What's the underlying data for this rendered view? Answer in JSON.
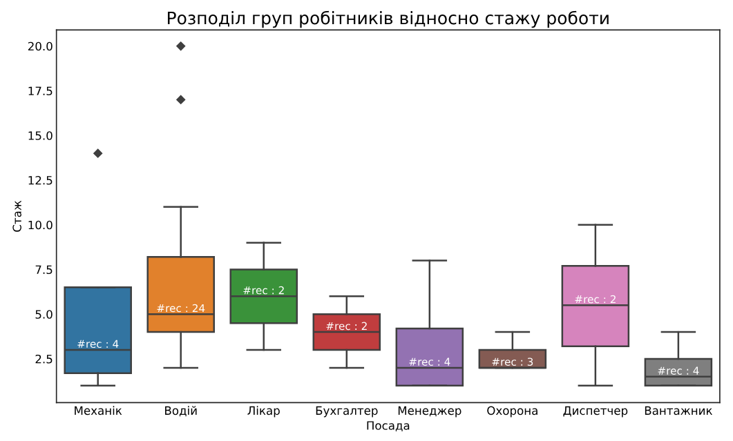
{
  "chart_data": {
    "type": "box",
    "title": "Розподіл груп робітників відносно стажу роботи",
    "xlabel": "Посада",
    "ylabel": "Стаж",
    "categories": [
      "Механік",
      "Водій",
      "Лікар",
      "Бухгалтер",
      "Менеджер",
      "Охорона",
      "Диспетчер",
      "Вантажник"
    ],
    "colors": [
      "#3274a1",
      "#e1812c",
      "#3a923a",
      "#c03d3e",
      "#9372b2",
      "#845b53",
      "#d684bd",
      "#7f7f7f"
    ],
    "boxes": [
      {
        "low": 1,
        "q1": 1.7,
        "median": 3,
        "q3": 6.5,
        "high": 6.5,
        "outliers": [
          14
        ]
      },
      {
        "low": 2,
        "q1": 4,
        "median": 5,
        "q3": 8.2,
        "high": 11,
        "outliers": [
          17,
          20
        ]
      },
      {
        "low": 3,
        "q1": 4.5,
        "median": 6,
        "q3": 7.5,
        "high": 9
      },
      {
        "low": 2,
        "q1": 3,
        "median": 4,
        "q3": 5,
        "high": 6
      },
      {
        "low": 1,
        "q1": 1,
        "median": 2,
        "q3": 4.2,
        "high": 8
      },
      {
        "low": 2,
        "q1": 2,
        "median": 2,
        "q3": 3,
        "high": 4
      },
      {
        "low": 1,
        "q1": 3.2,
        "median": 5.5,
        "q3": 7.7,
        "high": 10
      },
      {
        "low": 1,
        "q1": 1,
        "median": 1.5,
        "q3": 2.5,
        "high": 4
      }
    ],
    "annotations": [
      {
        "text": "#rec : 4",
        "x": "Механік",
        "y": 3
      },
      {
        "text": "#rec : 24",
        "x": "Водій",
        "y": 5
      },
      {
        "text": "#rec : 2",
        "x": "Лікар",
        "y": 6
      },
      {
        "text": "#rec : 2",
        "x": "Бухгалтер",
        "y": 4
      },
      {
        "text": "#rec : 4",
        "x": "Менеджер",
        "y": 2
      },
      {
        "text": "#rec : 3",
        "x": "Охорона",
        "y": 2
      },
      {
        "text": "#rec : 2",
        "x": "Диспетчер",
        "y": 5.5
      },
      {
        "text": "#rec : 4",
        "x": "Вантажник",
        "y": 1.5
      }
    ],
    "ylim": [
      0.05,
      20.9
    ],
    "yticks": [
      {
        "value": 2.5,
        "label": "2.5"
      },
      {
        "value": 5,
        "label": "5.0"
      },
      {
        "value": 7.5,
        "label": "7.5"
      },
      {
        "value": 10,
        "label": "10.0"
      },
      {
        "value": 12.5,
        "label": "12.5"
      },
      {
        "value": 15,
        "label": "15.0"
      },
      {
        "value": 17.5,
        "label": "17.5"
      },
      {
        "value": 20,
        "label": "20.0"
      }
    ],
    "grid": false,
    "marker": "diamond"
  }
}
